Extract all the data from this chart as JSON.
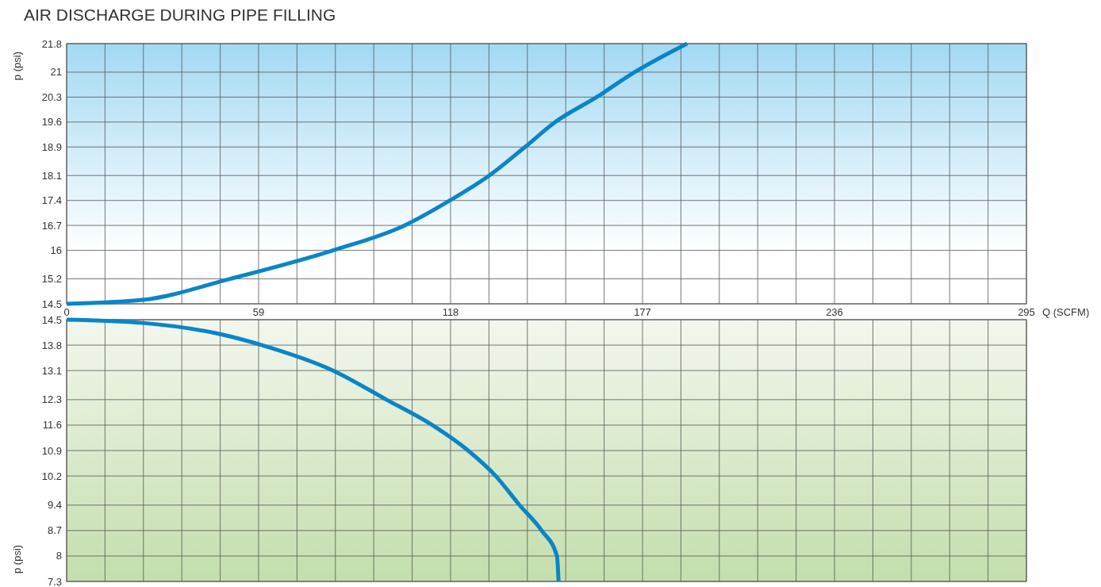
{
  "chart_data": [
    {
      "type": "line",
      "title": "AIR DISCHARGE DURING PIPE FILLING",
      "xlabel": "Q (SCFM)",
      "ylabel": "p (psi)",
      "grid": true,
      "marker": "none",
      "line_style": "solid",
      "xlim": [
        0,
        295
      ],
      "ylim": [
        14.5,
        21.8
      ],
      "xticks": [
        0,
        {
          "value": 11.8,
          "label": null
        },
        {
          "value": 23.6,
          "label": null
        },
        {
          "value": 35.4,
          "label": null
        },
        {
          "value": 47.2,
          "label": null
        },
        59,
        {
          "value": 70.8,
          "label": null
        },
        {
          "value": 82.6,
          "label": null
        },
        {
          "value": 94.4,
          "label": null
        },
        {
          "value": 106.2,
          "label": null
        },
        118,
        {
          "value": 129.8,
          "label": null
        },
        {
          "value": 141.6,
          "label": null
        },
        {
          "value": 153.4,
          "label": null
        },
        {
          "value": 165.2,
          "label": null
        },
        177,
        {
          "value": 188.8,
          "label": null
        },
        {
          "value": 200.6,
          "label": null
        },
        {
          "value": 212.4,
          "label": null
        },
        {
          "value": 224.2,
          "label": null
        },
        236,
        {
          "value": 247.8,
          "label": null
        },
        {
          "value": 259.6,
          "label": null
        },
        {
          "value": 271.4,
          "label": null
        },
        {
          "value": 283.2,
          "label": null
        },
        295
      ],
      "yticks": [
        14.5,
        15.2,
        16,
        16.7,
        17.4,
        18.1,
        18.9,
        19.6,
        20.3,
        21,
        21.8
      ],
      "series": [
        {
          "color": "#0a85c8",
          "x": [
            0,
            23.4,
            50.2,
            81.9,
            103.9,
            117.8,
            129.9,
            140.9,
            150.2,
            162.9,
            174.6,
            190.7
          ],
          "values": [
            14.5,
            14.61,
            15.2,
            16,
            16.7,
            17.4,
            18.1,
            18.9,
            19.6,
            20.3,
            21,
            21.8
          ]
        }
      ]
    },
    {
      "type": "line",
      "ylabel": "p (psi)",
      "grid": true,
      "marker": "none",
      "line_style": "solid",
      "tick_labels": "y",
      "xlim": [
        0,
        295
      ],
      "ylim": [
        7.3,
        14.5
      ],
      "xticks": [
        0,
        {
          "value": 11.8,
          "label": null
        },
        {
          "value": 23.6,
          "label": null
        },
        {
          "value": 35.4,
          "label": null
        },
        {
          "value": 47.2,
          "label": null
        },
        59,
        {
          "value": 70.8,
          "label": null
        },
        {
          "value": 82.6,
          "label": null
        },
        {
          "value": 94.4,
          "label": null
        },
        {
          "value": 106.2,
          "label": null
        },
        118,
        {
          "value": 129.8,
          "label": null
        },
        {
          "value": 141.6,
          "label": null
        },
        {
          "value": 153.4,
          "label": null
        },
        {
          "value": 165.2,
          "label": null
        },
        177,
        {
          "value": 188.8,
          "label": null
        },
        {
          "value": 200.6,
          "label": null
        },
        {
          "value": 212.4,
          "label": null
        },
        {
          "value": 224.2,
          "label": null
        },
        236,
        {
          "value": 247.8,
          "label": null
        },
        {
          "value": 259.6,
          "label": null
        },
        {
          "value": 271.4,
          "label": null
        },
        {
          "value": 283.2,
          "label": null
        },
        295
      ],
      "yticks": [
        14.5,
        13.8,
        13.1,
        12.3,
        11.6,
        10.9,
        10.2,
        9.4,
        8.7,
        8,
        7.3
      ],
      "series": [
        {
          "color": "#0a85c8",
          "x": [
            0,
            23.4,
            47.8,
            60,
            81.9,
            98.3,
            112.4,
            123.4,
            131.9,
            139.2,
            146,
            150.7,
            151.2
          ],
          "values": [
            14.5,
            14.41,
            14.09,
            13.8,
            13.1,
            12.3,
            11.6,
            10.9,
            10.2,
            9.4,
            8.7,
            8,
            7.3
          ]
        }
      ]
    }
  ]
}
